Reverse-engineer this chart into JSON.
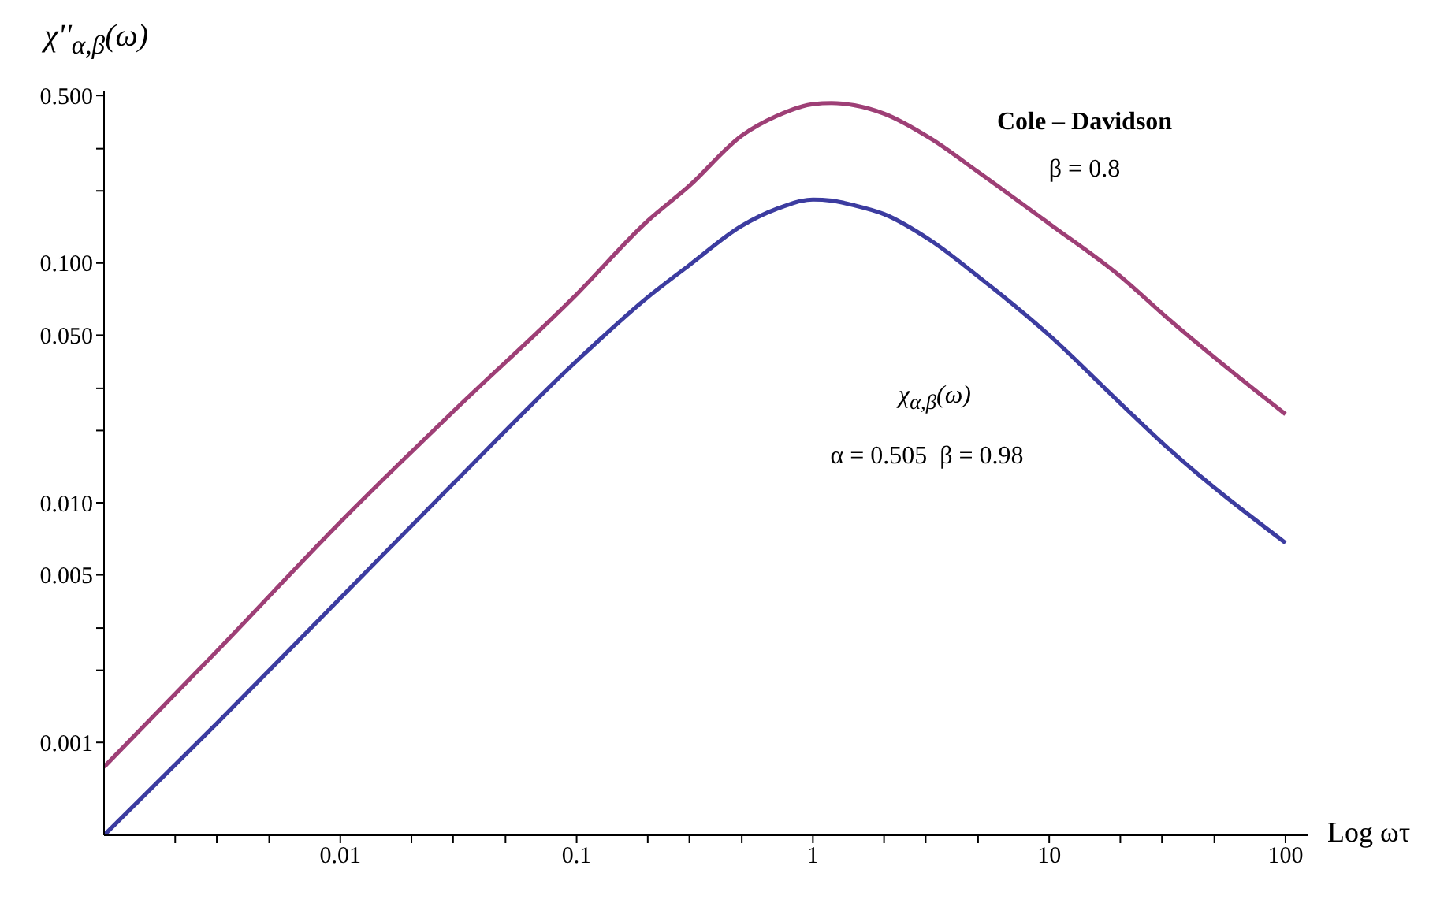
{
  "chart_data": {
    "type": "line",
    "log": "xy",
    "xlabel": "Log ωτ",
    "ylabel": "χ''$_{α,β}$(ω)",
    "x": [
      0.001,
      0.003,
      0.01,
      0.03,
      0.1,
      0.2,
      0.3,
      0.5,
      0.7,
      1,
      1.2,
      1.5,
      2,
      3.16,
      5,
      10,
      20,
      31.6,
      100
    ],
    "series": [
      {
        "color": "#9e3f76",
        "values": [
          0.00079,
          0.0024,
          0.0083,
          0.024,
          0.074,
          0.15,
          0.21,
          0.34,
          0.41,
          0.46,
          0.465,
          0.455,
          0.42,
          0.33,
          0.24,
          0.146,
          0.088,
          0.059,
          0.0234
        ]
      },
      {
        "color": "#3c3ca0",
        "values": [
          0.00041,
          0.0012,
          0.004,
          0.012,
          0.039,
          0.072,
          0.098,
          0.143,
          0.168,
          0.184,
          0.182,
          0.174,
          0.16,
          0.124,
          0.088,
          0.05,
          0.026,
          0.017,
          0.0068
        ]
      }
    ],
    "xlim": [
      0.001,
      125
    ],
    "ylim": [
      0.00041,
      0.52
    ],
    "xticks": [
      {
        "value": 0.002,
        "label": null
      },
      {
        "value": 0.003,
        "label": null
      },
      {
        "value": 0.005,
        "label": null
      },
      0.01,
      {
        "value": 0.02,
        "label": null
      },
      {
        "value": 0.03,
        "label": null
      },
      {
        "value": 0.05,
        "label": null
      },
      0.1,
      {
        "value": 0.2,
        "label": null
      },
      {
        "value": 0.3,
        "label": null
      },
      {
        "value": 0.5,
        "label": null
      },
      1,
      {
        "value": 2,
        "label": null
      },
      {
        "value": 3,
        "label": null
      },
      {
        "value": 5,
        "label": null
      },
      10,
      {
        "value": 20,
        "label": null
      },
      {
        "value": 30,
        "label": null
      },
      {
        "value": 50,
        "label": null
      },
      100
    ],
    "yticks": [
      {
        "value": 0.001,
        "label": "0.001"
      },
      {
        "value": 0.002,
        "label": null
      },
      {
        "value": 0.003,
        "label": null
      },
      {
        "value": 0.005,
        "label": "0.005"
      },
      {
        "value": 0.01,
        "label": "0.010"
      },
      {
        "value": 0.02,
        "label": null
      },
      {
        "value": 0.03,
        "label": null
      },
      {
        "value": 0.05,
        "label": "0.050"
      },
      {
        "value": 0.1,
        "label": "0.100"
      },
      {
        "value": 0.2,
        "label": null
      },
      {
        "value": 0.3,
        "label": null
      },
      {
        "value": 0.5,
        "label": "0.500"
      }
    ],
    "annotations": [
      "Cole – Davidson",
      "β = 0.8",
      "χ$_{α,β}$(ω)",
      "α = 0.505  β = 0.98"
    ],
    "grid": false,
    "legend": false,
    "marker": "none",
    "line_style": "solid"
  }
}
